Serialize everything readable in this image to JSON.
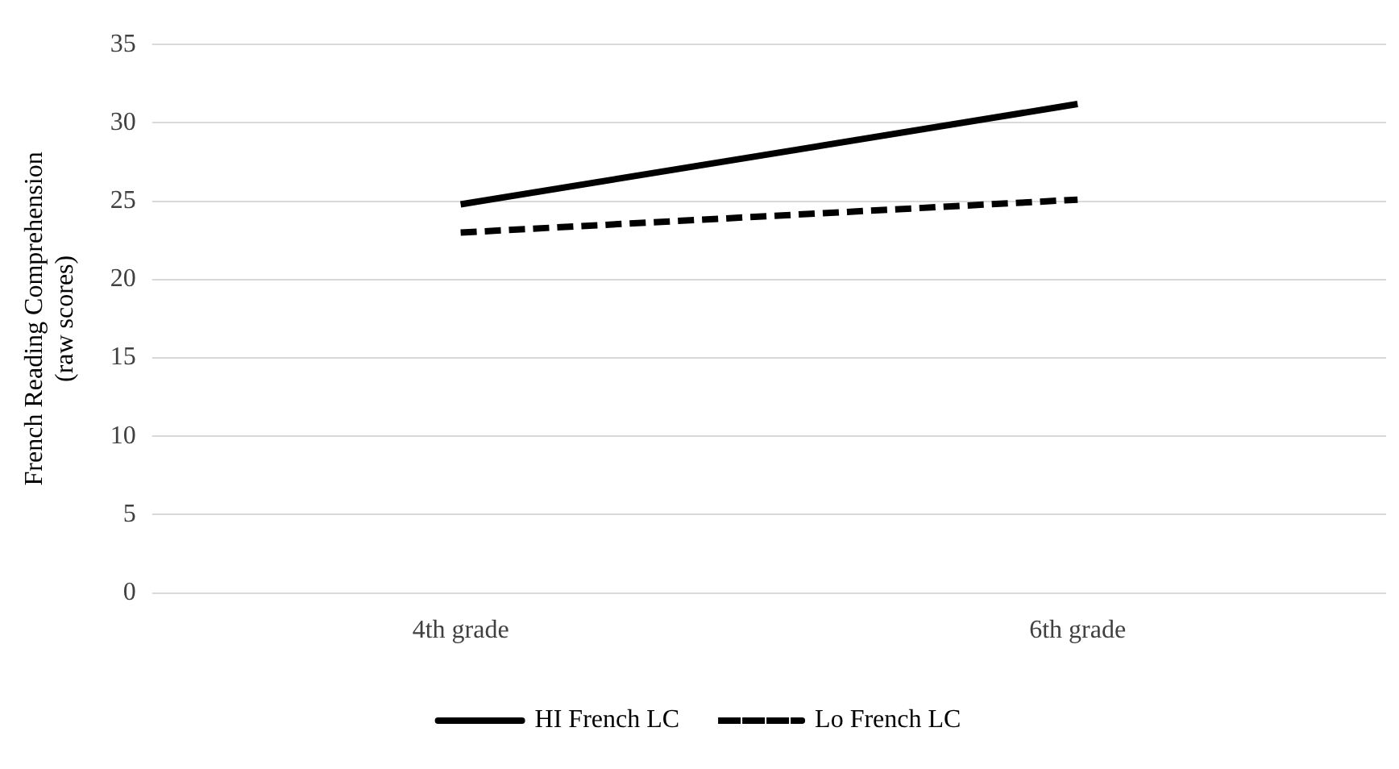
{
  "chart_data": {
    "type": "line",
    "ylabel": "French Reading Comprehension\n(raw scores)",
    "categories": [
      "4th grade",
      "6th grade"
    ],
    "series": [
      {
        "name": "HI French LC",
        "color": "#000000",
        "values": [
          24.8,
          31.2
        ],
        "line_style": "solid"
      },
      {
        "name": "Lo French LC",
        "color": "#000000",
        "values": [
          23.0,
          25.1
        ],
        "line_style": "dashed"
      }
    ],
    "ylim": [
      0,
      35
    ],
    "yticks": [
      0,
      5,
      10,
      15,
      20,
      25,
      30,
      35
    ],
    "grid": "y",
    "legend": "bottom",
    "marker": "none"
  }
}
